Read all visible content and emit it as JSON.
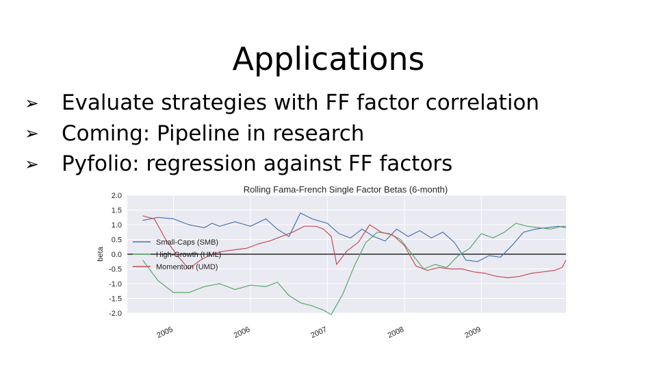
{
  "slide": {
    "title": "Applications",
    "bullet_icon": "arrowhead-bullet-icon",
    "bullets": [
      "Evaluate strategies with FF factor correlation",
      "Coming: Pipeline in research",
      "Pyfolio: regression against FF factors"
    ]
  },
  "chart_data": {
    "type": "line",
    "title": "Rolling Fama-French Single Factor Betas (6-month)",
    "xlabel": "",
    "ylabel": "beta",
    "xlim": [
      2004.4,
      2010.1
    ],
    "ylim": [
      -2.0,
      2.0
    ],
    "x_ticks": [
      2005,
      2006,
      2007,
      2008,
      2009
    ],
    "x_tick_labels": [
      "2005",
      "2006",
      "2007",
      "2008",
      "2009"
    ],
    "y_ticks": [
      2.0,
      1.5,
      1.0,
      0.5,
      0.0,
      -0.5,
      -1.0,
      -1.5,
      -2.0
    ],
    "y_tick_labels": [
      "2.0",
      "1.5",
      "1.0",
      "0.5",
      "0.0",
      "-0.5",
      "-1.0",
      "-1.5",
      "-2.0"
    ],
    "grid": true,
    "background": "#eaeaf2",
    "legend_position": "center-left",
    "reference_line": 0.0,
    "series": [
      {
        "name": "Small-Caps (SMB)",
        "color": "#4c72b0",
        "x": [
          2004.6,
          2004.8,
          2005.0,
          2005.2,
          2005.4,
          2005.5,
          2005.6,
          2005.8,
          2006.0,
          2006.2,
          2006.35,
          2006.5,
          2006.65,
          2006.8,
          2007.0,
          2007.15,
          2007.3,
          2007.45,
          2007.6,
          2007.75,
          2007.9,
          2008.05,
          2008.2,
          2008.35,
          2008.5,
          2008.65,
          2008.8,
          2008.95,
          2009.1,
          2009.25,
          2009.4,
          2009.55,
          2009.7,
          2009.85,
          2010.0,
          2010.1
        ],
        "y": [
          1.15,
          1.25,
          1.2,
          1.0,
          0.9,
          1.05,
          0.95,
          1.1,
          0.95,
          1.2,
          0.85,
          0.6,
          1.4,
          1.2,
          1.05,
          0.7,
          0.55,
          0.85,
          0.6,
          0.45,
          0.85,
          0.6,
          0.8,
          0.55,
          0.75,
          0.4,
          -0.2,
          -0.25,
          -0.05,
          -0.1,
          0.3,
          0.75,
          0.85,
          0.9,
          0.95,
          0.9
        ]
      },
      {
        "name": "High-Growth (HML)",
        "color": "#55a868",
        "x": [
          2004.6,
          2004.8,
          2005.0,
          2005.2,
          2005.4,
          2005.6,
          2005.8,
          2006.0,
          2006.2,
          2006.35,
          2006.5,
          2006.65,
          2006.8,
          2006.95,
          2007.05,
          2007.2,
          2007.35,
          2007.5,
          2007.65,
          2007.8,
          2007.95,
          2008.1,
          2008.25,
          2008.4,
          2008.55,
          2008.7,
          2008.85,
          2009.0,
          2009.15,
          2009.3,
          2009.45,
          2009.6,
          2009.75,
          2009.9,
          2010.05,
          2010.1
        ],
        "y": [
          -0.2,
          -0.9,
          -1.3,
          -1.3,
          -1.1,
          -1.0,
          -1.2,
          -1.05,
          -1.1,
          -0.95,
          -1.4,
          -1.65,
          -1.75,
          -1.9,
          -2.05,
          -1.35,
          -0.4,
          0.4,
          0.75,
          0.7,
          0.5,
          0.0,
          -0.5,
          -0.35,
          -0.45,
          -0.05,
          0.2,
          0.7,
          0.55,
          0.75,
          1.05,
          0.95,
          0.9,
          0.85,
          0.95,
          0.95
        ]
      },
      {
        "name": "Momentum (UMD)",
        "color": "#c44e52",
        "x": [
          2004.6,
          2004.75,
          2004.9,
          2005.05,
          2005.2,
          2005.35,
          2005.5,
          2005.65,
          2005.8,
          2005.95,
          2006.1,
          2006.25,
          2006.4,
          2006.55,
          2006.7,
          2006.85,
          2006.95,
          2007.05,
          2007.12,
          2007.25,
          2007.4,
          2007.55,
          2007.7,
          2007.85,
          2008.0,
          2008.15,
          2008.3,
          2008.45,
          2008.6,
          2008.75,
          2008.9,
          2009.05,
          2009.2,
          2009.35,
          2009.5,
          2009.65,
          2009.8,
          2009.95,
          2010.05,
          2010.1
        ],
        "y": [
          1.3,
          1.2,
          0.5,
          -0.05,
          -0.5,
          -0.2,
          0.0,
          0.1,
          0.15,
          0.2,
          0.35,
          0.45,
          0.6,
          0.75,
          0.95,
          0.95,
          0.85,
          0.6,
          -0.35,
          0.1,
          0.4,
          1.0,
          0.75,
          0.65,
          0.3,
          -0.4,
          -0.55,
          -0.45,
          -0.5,
          -0.5,
          -0.6,
          -0.65,
          -0.75,
          -0.8,
          -0.75,
          -0.65,
          -0.6,
          -0.55,
          -0.45,
          -0.2
        ]
      }
    ]
  }
}
